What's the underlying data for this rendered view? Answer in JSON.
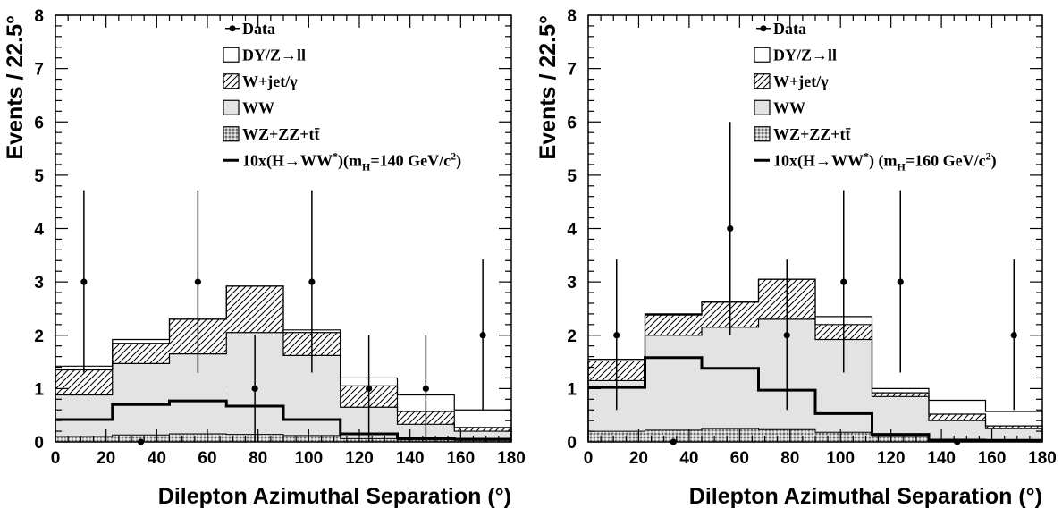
{
  "chart_data": [
    {
      "type": "histogram",
      "xlabel": "Dilepton Azimuthal Separation (°)",
      "ylabel": "Events / 22.5°",
      "xlim": [
        0,
        180
      ],
      "ylim": [
        0,
        8
      ],
      "x_ticks": [
        "0",
        "20",
        "40",
        "60",
        "80",
        "100",
        "120",
        "140",
        "160",
        "180"
      ],
      "y_ticks": [
        "0",
        "1",
        "2",
        "3",
        "4",
        "5",
        "6",
        "7",
        "8"
      ],
      "bin_edges": [
        0,
        22.5,
        45,
        67.5,
        90,
        112.5,
        135,
        157.5,
        180
      ],
      "legend": {
        "data": "Data",
        "dy": "DY/Z→ll",
        "wjet": "W+jet/γ",
        "ww": "WW",
        "other": "WZ+ZZ+tt̄",
        "higgs_main": "10x(H→WW",
        "higgs_sup": "*",
        "higgs_mid": ")(m",
        "higgs_sub": "H",
        "higgs_end": "=140 GeV/c",
        "higgs_sup2": "2",
        "higgs_close": ")"
      },
      "stack_top": {
        "other": [
          0.1,
          0.13,
          0.15,
          0.14,
          0.12,
          0.06,
          0.04,
          0.03
        ],
        "ww": [
          0.88,
          1.47,
          1.65,
          2.05,
          1.62,
          0.65,
          0.33,
          0.2
        ],
        "wjet": [
          1.35,
          1.85,
          2.3,
          2.92,
          2.05,
          1.05,
          0.57,
          0.27
        ],
        "dy": [
          1.42,
          1.92,
          2.3,
          2.92,
          2.1,
          1.2,
          0.88,
          0.6
        ]
      },
      "higgs": [
        0.42,
        0.7,
        0.77,
        0.67,
        0.42,
        0.15,
        0.07,
        0.05
      ],
      "data_points": {
        "x": [
          11.25,
          33.75,
          56.25,
          78.75,
          101.25,
          123.75,
          146.25,
          168.75
        ],
        "y": [
          3,
          0,
          3,
          1,
          3,
          1,
          1,
          2
        ],
        "err_low": [
          1.7,
          0,
          1.7,
          1,
          1.7,
          1,
          1,
          1.4
        ],
        "err_high": [
          1.72,
          0,
          1.72,
          1,
          1.72,
          1,
          1,
          1.42
        ]
      }
    },
    {
      "type": "histogram",
      "xlabel": "Dilepton Azimuthal Separation (°)",
      "ylabel": "Events / 22.5°",
      "xlim": [
        0,
        180
      ],
      "ylim": [
        0,
        8
      ],
      "x_ticks": [
        "0",
        "20",
        "40",
        "60",
        "80",
        "100",
        "120",
        "140",
        "160",
        "180"
      ],
      "y_ticks": [
        "0",
        "1",
        "2",
        "3",
        "4",
        "5",
        "6",
        "7",
        "8"
      ],
      "bin_edges": [
        0,
        22.5,
        45,
        67.5,
        90,
        112.5,
        135,
        157.5,
        180
      ],
      "legend": {
        "data": "Data",
        "dy": "DY/Z→ll",
        "wjet": "W+jet/γ",
        "ww": "WW",
        "other": "WZ+ZZ+tt̄",
        "higgs_main": "10x(H→WW",
        "higgs_sup": "*",
        "higgs_mid": ") (m",
        "higgs_sub": "H",
        "higgs_end": "=160 GeV/c",
        "higgs_sup2": "2",
        "higgs_close": ")"
      },
      "stack_top": {
        "other": [
          0.2,
          0.22,
          0.25,
          0.23,
          0.18,
          0.1,
          0.05,
          0.03
        ],
        "ww": [
          1.15,
          2.0,
          2.15,
          2.3,
          1.92,
          0.85,
          0.4,
          0.25
        ],
        "wjet": [
          1.52,
          2.38,
          2.62,
          3.05,
          2.2,
          0.92,
          0.52,
          0.3
        ],
        "dy": [
          1.55,
          2.4,
          2.62,
          3.05,
          2.35,
          1.0,
          0.78,
          0.57
        ]
      },
      "higgs": [
        1.02,
        1.58,
        1.38,
        0.97,
        0.53,
        0.14,
        0.03,
        0.03
      ],
      "data_points": {
        "x": [
          11.25,
          33.75,
          56.25,
          78.75,
          101.25,
          123.75,
          146.25,
          168.75
        ],
        "y": [
          2,
          0,
          4,
          2,
          3,
          3,
          0,
          2
        ],
        "err_low": [
          1.4,
          0,
          2,
          1.4,
          1.7,
          1.7,
          0,
          1.4
        ],
        "err_high": [
          1.42,
          0,
          2,
          1.42,
          1.72,
          1.72,
          0,
          1.42
        ]
      }
    }
  ]
}
